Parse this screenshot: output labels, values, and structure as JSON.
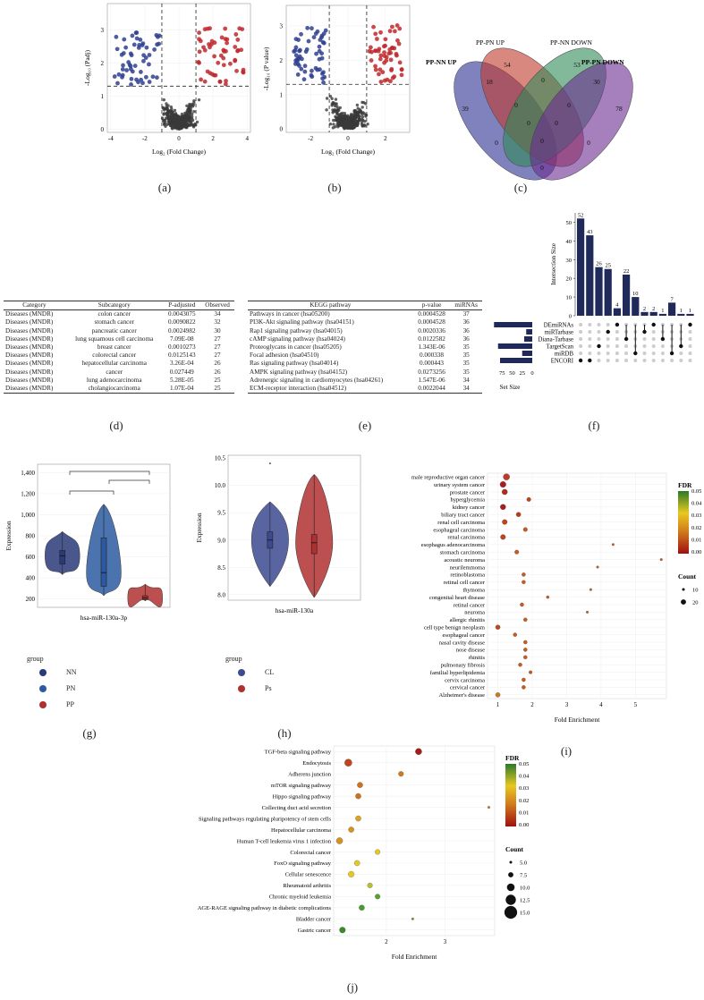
{
  "panels": {
    "a": "(a)",
    "b": "(b)",
    "c": "(c)",
    "d": "(d)",
    "e": "(e)",
    "f": "(f)",
    "g": "(g)",
    "h": "(h)",
    "i": "(i)",
    "j": "(j)"
  },
  "volcano_a": {
    "xlabel": "Log₂ (Fold Change)",
    "ylabel": "-Log₁₀ (Padj)",
    "xticks": [
      -4,
      -2,
      0,
      2,
      4
    ],
    "yticks": [
      0,
      1,
      2,
      3
    ],
    "xlim": [
      -4.2,
      4.2
    ],
    "ylim": [
      -0.1,
      3.8
    ],
    "vlines": [
      -1,
      1
    ],
    "hline": 1.3
  },
  "volcano_b": {
    "xlabel": "Log₂ (Fold Change)",
    "ylabel": "-Log₁₀ (P value)",
    "xticks": [
      -2,
      0,
      2
    ],
    "yticks": [
      0,
      1,
      2,
      3
    ],
    "xlim": [
      -3.3,
      3.3
    ],
    "ylim": [
      -0.1,
      3.6
    ],
    "vlines": [
      -1,
      1
    ],
    "hline": 1.3
  },
  "venn": {
    "sets": [
      "PP-NN UP",
      "PP-PN UP",
      "PP-NN DOWN",
      "PP-PN DOWN"
    ],
    "counts": [
      "39",
      "18",
      "54",
      "0",
      "53",
      "30",
      "78",
      "0",
      "0",
      "0",
      "0",
      "0",
      "0",
      "0",
      "0"
    ],
    "colors": [
      "#3c3f9b",
      "#c0392b",
      "#2e8b57",
      "#6a2c91"
    ]
  },
  "table_d": {
    "headers": [
      "Category",
      "Subcategory",
      "P-adjusted",
      "Observed"
    ],
    "rows": [
      [
        "Diseases (MNDR)",
        "colon cancer",
        "0.0043075",
        "34"
      ],
      [
        "Diseases (MNDR)",
        "stomach cancer",
        "0.0090822",
        "32"
      ],
      [
        "Diseases (MNDR)",
        "pancreatic cancer",
        "0.0024982",
        "30"
      ],
      [
        "Diseases (MNDR)",
        "lung squamous cell carcinoma",
        "7.09E-08",
        "27"
      ],
      [
        "Diseases (MNDR)",
        "breast cancer",
        "0.0010273",
        "27"
      ],
      [
        "Diseases (MNDR)",
        "colorectal cancer",
        "0.0125143",
        "27"
      ],
      [
        "Diseases (MNDR)",
        "hepatocellular carcinoma",
        "3.26E-04",
        "26"
      ],
      [
        "Diseases (MNDR)",
        "cancer",
        "0.027449",
        "26"
      ],
      [
        "Diseases (MNDR)",
        "lung adenocarcinoma",
        "5.28E-05",
        "25"
      ],
      [
        "Diseases (MNDR)",
        "cholangiocarcinoma",
        "1.07E-04",
        "25"
      ]
    ]
  },
  "table_e": {
    "headers": [
      "KEGG pathway",
      "p-value",
      "miRNAs"
    ],
    "rows": [
      [
        "Pathways in cancer (hsa05200)",
        "0.0004528",
        "37"
      ],
      [
        "PI3K-Akt signaling pathway (hsa04151)",
        "0.0004528",
        "36"
      ],
      [
        "Rap1 signaling pathway (hsa04015)",
        "0.0020336",
        "36"
      ],
      [
        "cAMP signaling pathway (hsa04024)",
        "0.0122582",
        "36"
      ],
      [
        "Proteoglycans in cancer (hsa05205)",
        "1.343E-06",
        "35"
      ],
      [
        "Focal adhesion (hsa04510)",
        "0.000338",
        "35"
      ],
      [
        "Ras signaling pathway (hsa04014)",
        "0.000443",
        "35"
      ],
      [
        "AMPK signaling pathway (hsa04152)",
        "0.0273256",
        "35"
      ],
      [
        "Adrenergic signaling in cardiomyocytes (hsa04261)",
        "1.547E-06",
        "34"
      ],
      [
        "ECM-receptor interaction (hsa04512)",
        "0.0022044",
        "34"
      ]
    ]
  },
  "chart_data": [
    {
      "id": "f",
      "type": "bar",
      "ylabel": "Intersection Size",
      "bars": [
        52,
        43,
        26,
        25,
        4,
        22,
        10,
        2,
        2,
        1,
        7,
        1,
        1
      ],
      "sets": [
        "DEmiRNAs",
        "miRTarbase",
        "Diana-Tarbase",
        "TargetScan",
        "miRDB",
        "ENCORI"
      ],
      "set_sizes": [
        95,
        15,
        20,
        85,
        25,
        80
      ],
      "set_size_label": "Set Size",
      "set_size_ticks": [
        75,
        50,
        25,
        0
      ],
      "matrix": [
        [
          0,
          5
        ],
        [
          1,
          5
        ],
        [
          2,
          3
        ],
        [
          3,
          1
        ],
        [
          4,
          0
        ],
        [
          5,
          2
        ],
        [
          6,
          4
        ],
        [
          7,
          1
        ],
        [
          8,
          0
        ],
        [
          9,
          2
        ],
        [
          10,
          4
        ],
        [
          11,
          3
        ],
        [
          12,
          0
        ]
      ]
    },
    {
      "id": "g",
      "type": "violin",
      "xlabel": "hsa-miR-130a-3p",
      "ylabel": "Expression",
      "yticks": [
        200,
        400,
        600,
        800,
        1000,
        1200,
        1400
      ],
      "ylim": [
        120,
        1480
      ],
      "groups": [
        {
          "name": "NN",
          "color": "#2a3a78",
          "min": 430,
          "max": 840,
          "q1": 530,
          "median": 610,
          "q3": 660
        },
        {
          "name": "PN",
          "color": "#2c5aa0",
          "min": 230,
          "max": 1100,
          "q1": 320,
          "median": 450,
          "q3": 780
        },
        {
          "name": "PP",
          "color": "#b03030",
          "min": 180,
          "max": 340,
          "q1": 195,
          "median": 210,
          "q3": 230
        }
      ],
      "legend_title": "group"
    },
    {
      "id": "h",
      "type": "violin",
      "xlabel": "hsa-miR-130a",
      "ylabel": "Expression",
      "yticks": [
        8.0,
        8.5,
        9.0,
        9.5,
        10.0,
        10.5
      ],
      "ylim": [
        7.9,
        10.55
      ],
      "groups": [
        {
          "name": "CL",
          "color": "#3c4a90",
          "min": 8.15,
          "max": 9.7,
          "q1": 8.85,
          "median": 9.0,
          "q3": 9.15
        },
        {
          "name": "Ps",
          "color": "#b03030",
          "min": 7.95,
          "max": 10.2,
          "q1": 8.75,
          "median": 8.95,
          "q3": 9.1
        }
      ],
      "outlier": 10.4,
      "legend_title": "group"
    },
    {
      "id": "i",
      "type": "scatter",
      "xlabel": "Fold Enrichment",
      "xticks": [
        1,
        2,
        3,
        4,
        5
      ],
      "xlim": [
        0.7,
        5.9
      ],
      "legend_fdr": "FDR",
      "fdr_ticks": [
        "0.05",
        "0.04",
        "0.03",
        "0.02",
        "0.01",
        "0.00"
      ],
      "legend_count": "Count",
      "count_ticks": [
        "10",
        "20"
      ],
      "points": [
        {
          "label": "male reproductive organ cancer",
          "x": 1.25,
          "size": 6,
          "color": "#c0392b"
        },
        {
          "label": "urinary system cancer",
          "x": 1.15,
          "size": 5.5,
          "color": "#a61e1e"
        },
        {
          "label": "prostate cancer",
          "x": 1.2,
          "size": 5,
          "color": "#b52a1a"
        },
        {
          "label": "hyperglycemia",
          "x": 1.9,
          "size": 3.5,
          "color": "#c0441a"
        },
        {
          "label": "kidney cancer",
          "x": 1.15,
          "size": 5,
          "color": "#a61e1e"
        },
        {
          "label": "biliary tract cancer",
          "x": 1.6,
          "size": 4,
          "color": "#b83a1a"
        },
        {
          "label": "renal cell carcinoma",
          "x": 1.2,
          "size": 4.5,
          "color": "#c0451b"
        },
        {
          "label": "esophageal carcinoma",
          "x": 1.8,
          "size": 3.5,
          "color": "#c85a1c"
        },
        {
          "label": "renal carcinoma",
          "x": 1.15,
          "size": 4.5,
          "color": "#c0451b"
        },
        {
          "label": "esophagus adenocarcinoma",
          "x": 4.35,
          "size": 1.5,
          "color": "#c85a1c"
        },
        {
          "label": "stomach carcinoma",
          "x": 1.55,
          "size": 3.5,
          "color": "#c85a1c"
        },
        {
          "label": "acoustic neuroma",
          "x": 5.75,
          "size": 1.5,
          "color": "#c85a1c"
        },
        {
          "label": "neurilemmoma",
          "x": 3.9,
          "size": 1.5,
          "color": "#c85a1c"
        },
        {
          "label": "retinoblastoma",
          "x": 1.75,
          "size": 3,
          "color": "#c85a1c"
        },
        {
          "label": "retinal cell cancer",
          "x": 1.75,
          "size": 3,
          "color": "#c85a1c"
        },
        {
          "label": "thymoma",
          "x": 3.7,
          "size": 1.5,
          "color": "#c85a1c"
        },
        {
          "label": "congenital heart disease",
          "x": 2.45,
          "size": 2,
          "color": "#c85a1c"
        },
        {
          "label": "retinal cancer",
          "x": 1.7,
          "size": 3,
          "color": "#c85a1c"
        },
        {
          "label": "neuroma",
          "x": 3.6,
          "size": 1.5,
          "color": "#c85a1c"
        },
        {
          "label": "allergic rhinitis",
          "x": 1.8,
          "size": 3,
          "color": "#c85a1c"
        },
        {
          "label": "cell type benign neoplasm",
          "x": 1.0,
          "size": 4,
          "color": "#c0451b"
        },
        {
          "label": "esophageal cancer",
          "x": 1.5,
          "size": 3,
          "color": "#c85a1c"
        },
        {
          "label": "nasal cavity disease",
          "x": 1.8,
          "size": 3,
          "color": "#c85a1c"
        },
        {
          "label": "nose disease",
          "x": 1.8,
          "size": 3,
          "color": "#c85a1c"
        },
        {
          "label": "rhinitis",
          "x": 1.8,
          "size": 3,
          "color": "#c85a1c"
        },
        {
          "label": "pulmonary fibrosis",
          "x": 1.65,
          "size": 3,
          "color": "#c85a1c"
        },
        {
          "label": "familial hyperlipidemia",
          "x": 1.95,
          "size": 2.5,
          "color": "#c85a1c"
        },
        {
          "label": "cervix carcinoma",
          "x": 1.75,
          "size": 3,
          "color": "#c85a1c"
        },
        {
          "label": "cervical cancer",
          "x": 1.75,
          "size": 3,
          "color": "#c85a1c"
        },
        {
          "label": "Alzheimer's disease",
          "x": 1.0,
          "size": 4,
          "color": "#c87a1c"
        }
      ]
    },
    {
      "id": "j",
      "type": "scatter",
      "xlabel": "Fold Enrichment",
      "xticks": [
        2,
        3
      ],
      "xlim": [
        1.1,
        3.85
      ],
      "legend_fdr": "FDR",
      "fdr_ticks": [
        "0.05",
        "0.04",
        "0.03",
        "0.02",
        "0.01",
        "0.00"
      ],
      "legend_count": "Count",
      "count_ticks": [
        "5.0",
        "7.5",
        "10.0",
        "12.5",
        "15.0"
      ],
      "points": [
        {
          "label": "TGF-beta signaling pathway",
          "x": 2.55,
          "size": 6,
          "color": "#a51c1c"
        },
        {
          "label": "Endocytosis",
          "x": 1.35,
          "size": 7,
          "color": "#c0451b"
        },
        {
          "label": "Adherens junction",
          "x": 2.25,
          "size": 4.5,
          "color": "#d07a1c"
        },
        {
          "label": "mTOR signaling pathway",
          "x": 1.55,
          "size": 5,
          "color": "#d0701c"
        },
        {
          "label": "Hippo signaling pathway",
          "x": 1.52,
          "size": 5,
          "color": "#d0701c"
        },
        {
          "label": "Collecting duct acid secretion",
          "x": 3.75,
          "size": 1.5,
          "color": "#d07a1c"
        },
        {
          "label": "Signaling pathways regulating pluripotency of stem cells",
          "x": 1.52,
          "size": 5,
          "color": "#e0a020"
        },
        {
          "label": "Hepatocellular carcinoma",
          "x": 1.4,
          "size": 5,
          "color": "#d89020"
        },
        {
          "label": "Human T-cell leukemia virus 1 infection",
          "x": 1.2,
          "size": 6,
          "color": "#d89020"
        },
        {
          "label": "Colorectal cancer",
          "x": 1.85,
          "size": 4.5,
          "color": "#e8c820"
        },
        {
          "label": "FoxO signaling pathway",
          "x": 1.5,
          "size": 5,
          "color": "#e8c820"
        },
        {
          "label": "Cellular senescence",
          "x": 1.4,
          "size": 5.5,
          "color": "#e8c820"
        },
        {
          "label": "Rheumatoid arthritis",
          "x": 1.72,
          "size": 4.5,
          "color": "#b8c030"
        },
        {
          "label": "Chronic myeloid leukemia",
          "x": 1.85,
          "size": 4.5,
          "color": "#5aa030"
        },
        {
          "label": "AGE-RAGE signaling pathway in diabetic complications",
          "x": 1.58,
          "size": 5,
          "color": "#4a9a30"
        },
        {
          "label": "Bladder cancer",
          "x": 2.45,
          "size": 1.5,
          "color": "#7a9a20"
        },
        {
          "label": "Gastric cancer",
          "x": 1.25,
          "size": 5.5,
          "color": "#3a8a2a"
        }
      ]
    }
  ]
}
